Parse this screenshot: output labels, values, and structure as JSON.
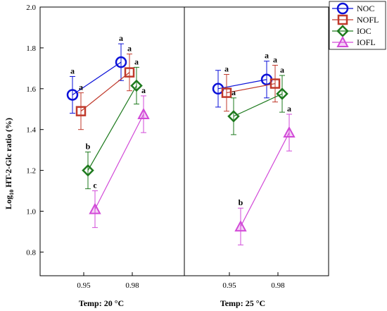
{
  "chart_data": {
    "type": "line",
    "ylabel_main": "Log",
    "ylabel_sub": "10",
    "ylabel_rest": " HT-2-Glc ratio (%)",
    "ylim": [
      0.7,
      2.0
    ],
    "yticks": [
      "0.8",
      "1.0",
      "1.2",
      "1.4",
      "1.6",
      "1.8",
      "2.0"
    ],
    "ytick_values": [
      0.8,
      1.0,
      1.2,
      1.4,
      1.6,
      1.8,
      2.0
    ],
    "x_categories": [
      "0.95",
      "0.98"
    ],
    "legend": [
      {
        "name": "NOC",
        "color": "#0a10d8",
        "marker": "circle"
      },
      {
        "name": "NOFL",
        "color": "#c0392b",
        "marker": "square"
      },
      {
        "name": "IOC",
        "color": "#1e7a1e",
        "marker": "diamond"
      },
      {
        "name": "IOFL",
        "color": "#d24ad8",
        "marker": "triangle"
      }
    ],
    "panels": [
      {
        "xlabel": "Temp: 20 °C",
        "series": [
          {
            "name": "NOC",
            "values": [
              1.57,
              1.73
            ],
            "err": [
              0.09,
              0.09
            ],
            "labels": [
              "a",
              "a"
            ]
          },
          {
            "name": "NOFL",
            "values": [
              1.49,
              1.68
            ],
            "err": [
              0.09,
              0.09
            ],
            "labels": [
              "a",
              "a"
            ]
          },
          {
            "name": "IOC",
            "values": [
              1.2,
              1.615
            ],
            "err": [
              0.09,
              0.09
            ],
            "labels": [
              "b",
              "a"
            ]
          },
          {
            "name": "IOFL",
            "values": [
              1.01,
              1.475
            ],
            "err": [
              0.09,
              0.09
            ],
            "labels": [
              "c",
              "a"
            ]
          }
        ]
      },
      {
        "xlabel": "Temp: 25 °C",
        "series": [
          {
            "name": "NOC",
            "values": [
              1.6,
              1.645
            ],
            "err": [
              0.09,
              0.09
            ],
            "labels": [
              "",
              "a"
            ]
          },
          {
            "name": "NOFL",
            "values": [
              1.58,
              1.625
            ],
            "err": [
              0.09,
              0.09
            ],
            "labels": [
              "a",
              "a"
            ]
          },
          {
            "name": "IOC",
            "values": [
              1.465,
              1.575
            ],
            "err": [
              0.09,
              0.09
            ],
            "labels": [
              "a",
              "a"
            ]
          },
          {
            "name": "IOFL",
            "values": [
              0.925,
              1.385
            ],
            "err": [
              0.09,
              0.09
            ],
            "labels": [
              "b",
              "a"
            ]
          }
        ]
      }
    ]
  }
}
